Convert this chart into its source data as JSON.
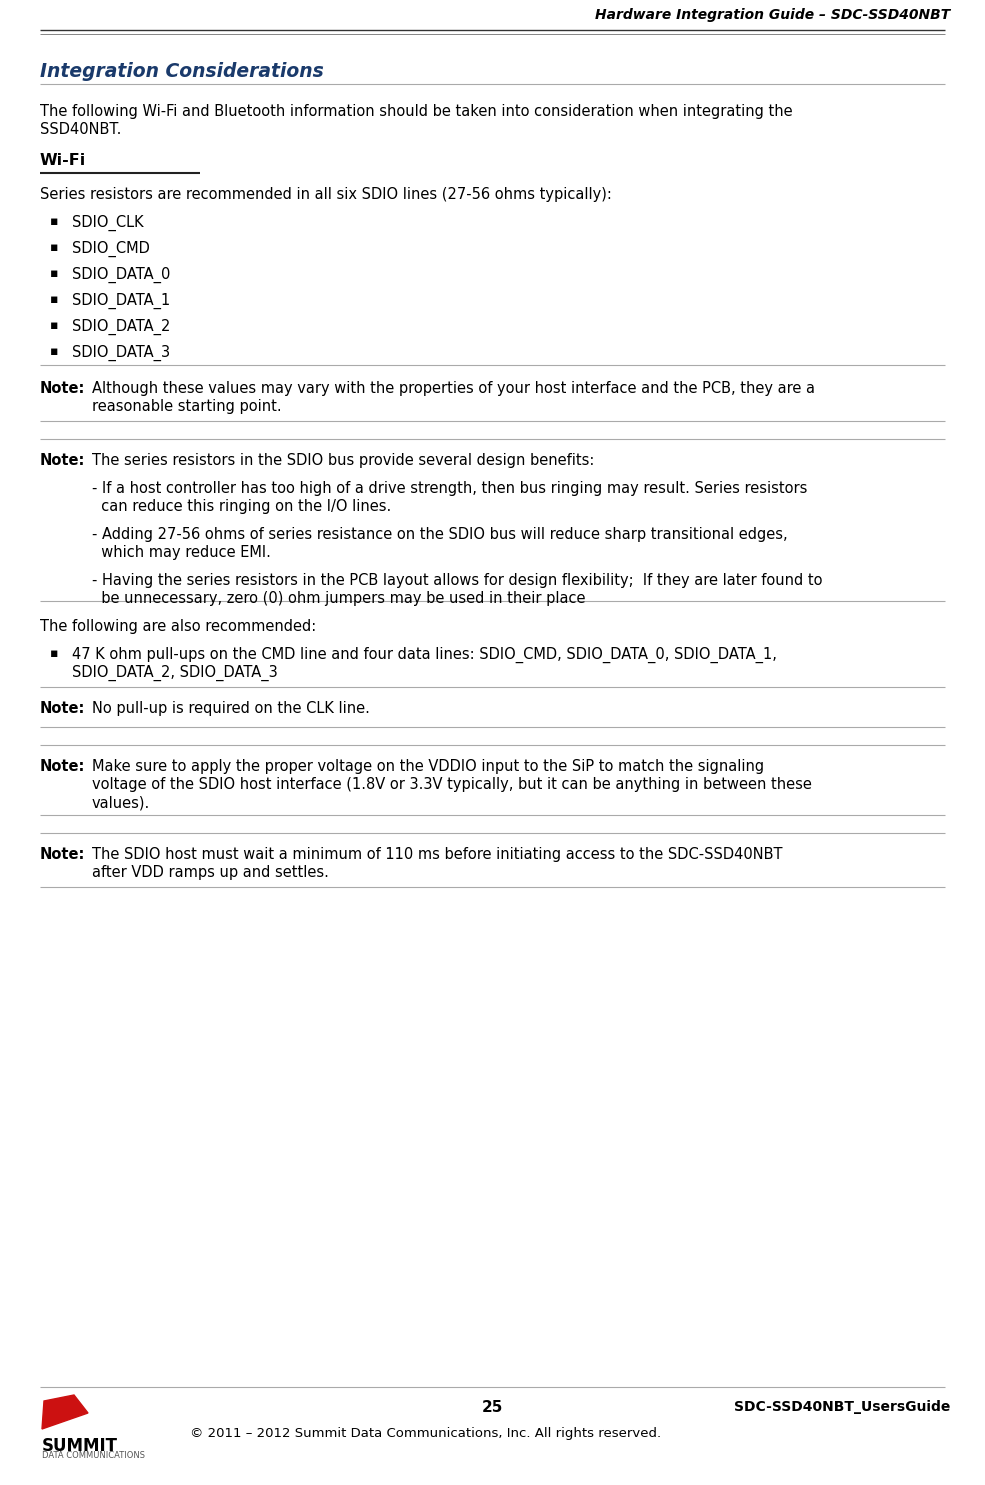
{
  "header_text": "Hardware Integration Guide – SDC-SSD40NBT",
  "title_text": "Integration Considerations",
  "title_color": "#1a3a6b",
  "bg_color": "#ffffff",
  "intro_line1": "The following Wi-Fi and Bluetooth information should be taken into consideration when integrating the",
  "intro_line2": "SSD40NBT.",
  "wifi_heading": "Wi-Fi",
  "wifi_intro": "Series resistors are recommended in all six SDIO lines (27-56 ohms typically):",
  "bullet_items": [
    "SDIO_CLK",
    "SDIO_CMD",
    "SDIO_DATA_0",
    "SDIO_DATA_1",
    "SDIO_DATA_2",
    "SDIO_DATA_3"
  ],
  "note1_text1": "Although these values may vary with the properties of your host interface and the PCB, they are a",
  "note1_text2": "reasonable starting point.",
  "note2_intro": "The series resistors in the SDIO bus provide several design benefits:",
  "note2_sub1a": "- If a host controller has too high of a drive strength, then bus ringing may result. Series resistors",
  "note2_sub1b": "  can reduce this ringing on the I/O lines.",
  "note2_sub2a": "- Adding 27-56 ohms of series resistance on the SDIO bus will reduce sharp transitional edges,",
  "note2_sub2b": "  which may reduce EMI.",
  "note2_sub3a": "- Having the series resistors in the PCB layout allows for design flexibility;  If they are later found to",
  "note2_sub3b": "  be unnecessary, zero (0) ohm jumpers may be used in their place",
  "following_text": "The following are also recommended:",
  "bullet2_line1": "47 K ohm pull-ups on the CMD line and four data lines: SDIO_CMD, SDIO_DATA_0, SDIO_DATA_1,",
  "bullet2_line2": "SDIO_DATA_2, SDIO_DATA_3",
  "note3_text": "No pull-up is required on the CLK line.",
  "note4_line1": "Make sure to apply the proper voltage on the VDDIO input to the SiP to match the signaling",
  "note4_line2": "voltage of the SDIO host interface (1.8V or 3.3V typically, but it can be anything in between these",
  "note4_line3": "values).",
  "note5_line1": "The SDIO host must wait a minimum of 110 ms before initiating access to the SDC-SSD40NBT",
  "note5_line2": "after VDD ramps up and settles.",
  "footer_page": "25",
  "footer_right": "SDC-SSD40NBT_UsersGuide",
  "footer_copy": "© 2011 – 2012 Summit Data Communications, Inc. All rights reserved.",
  "summit_color": "#cc1111",
  "summit_text": "SUMMIT",
  "summit_sub": "DATA COMMUNICATIONS",
  "line_color": "#aaaaaa",
  "text_color": "#000000",
  "note_label": "Note:"
}
